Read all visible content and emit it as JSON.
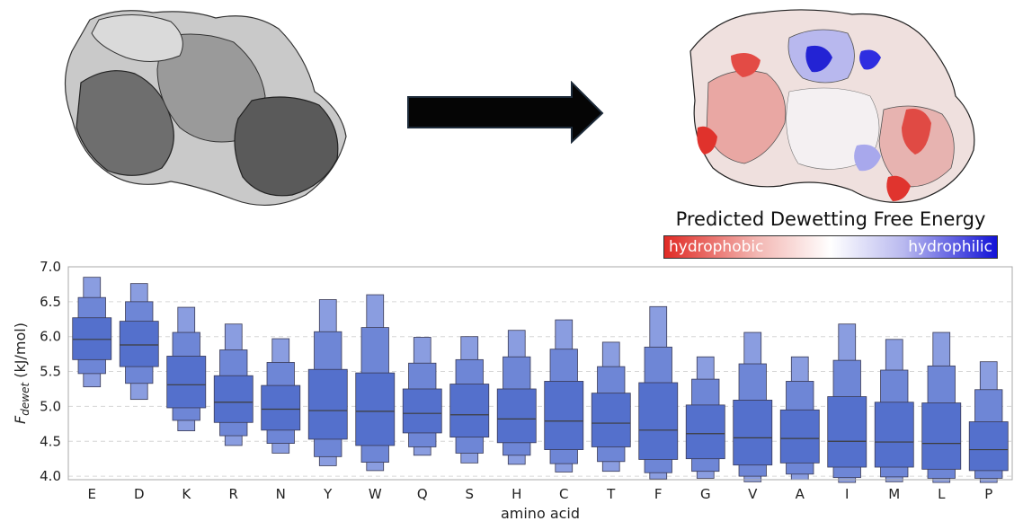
{
  "legend": {
    "title": "Predicted Dewetting Free Energy",
    "low_label": "hydrophobic",
    "high_label": "hydrophilic",
    "colors": [
      "#e02a24",
      "#ffffff",
      "#1212d8"
    ]
  },
  "images": {
    "left": "grey-protein-surface",
    "arrow": "right-arrow-icon",
    "right": "colored-protein-surface"
  },
  "chart_data": {
    "type": "boxen",
    "xlabel": "amino acid",
    "ylabel": "F_dewet (kJ/mol)",
    "ylim": [
      3.95,
      7.0
    ],
    "yticks": [
      4.0,
      4.5,
      5.0,
      5.5,
      6.0,
      6.5,
      7.0
    ],
    "grid": "horizontal dashed",
    "box_color": "#5470cc",
    "series": [
      {
        "label": "E",
        "median": 5.96,
        "levels": [
          [
            5.67,
            6.27
          ],
          [
            5.47,
            6.56
          ],
          [
            5.28,
            6.85
          ]
        ]
      },
      {
        "label": "D",
        "median": 5.88,
        "levels": [
          [
            5.57,
            6.22
          ],
          [
            5.33,
            6.5
          ],
          [
            5.1,
            6.76
          ]
        ]
      },
      {
        "label": "K",
        "median": 5.31,
        "levels": [
          [
            4.98,
            5.72
          ],
          [
            4.8,
            6.06
          ],
          [
            4.65,
            6.42
          ]
        ]
      },
      {
        "label": "R",
        "median": 5.06,
        "levels": [
          [
            4.77,
            5.44
          ],
          [
            4.58,
            5.81
          ],
          [
            4.44,
            6.18
          ]
        ]
      },
      {
        "label": "N",
        "median": 4.96,
        "levels": [
          [
            4.66,
            5.3
          ],
          [
            4.47,
            5.63
          ],
          [
            4.33,
            5.97
          ]
        ]
      },
      {
        "label": "Y",
        "median": 4.94,
        "levels": [
          [
            4.53,
            5.53
          ],
          [
            4.28,
            6.07
          ],
          [
            4.15,
            6.53
          ]
        ]
      },
      {
        "label": "W",
        "median": 4.93,
        "levels": [
          [
            4.44,
            5.48
          ],
          [
            4.2,
            6.13
          ],
          [
            4.08,
            6.6
          ]
        ]
      },
      {
        "label": "Q",
        "median": 4.9,
        "levels": [
          [
            4.62,
            5.25
          ],
          [
            4.42,
            5.62
          ],
          [
            4.3,
            5.99
          ]
        ]
      },
      {
        "label": "S",
        "median": 4.88,
        "levels": [
          [
            4.56,
            5.32
          ],
          [
            4.33,
            5.67
          ],
          [
            4.19,
            6.0
          ]
        ]
      },
      {
        "label": "H",
        "median": 4.82,
        "levels": [
          [
            4.48,
            5.25
          ],
          [
            4.3,
            5.71
          ],
          [
            4.17,
            6.09
          ]
        ]
      },
      {
        "label": "C",
        "median": 4.79,
        "levels": [
          [
            4.38,
            5.36
          ],
          [
            4.18,
            5.82
          ],
          [
            4.06,
            6.24
          ]
        ]
      },
      {
        "label": "T",
        "median": 4.76,
        "levels": [
          [
            4.42,
            5.19
          ],
          [
            4.21,
            5.57
          ],
          [
            4.07,
            5.92
          ]
        ]
      },
      {
        "label": "F",
        "median": 4.66,
        "levels": [
          [
            4.24,
            5.34
          ],
          [
            4.05,
            5.85
          ],
          [
            3.96,
            6.43
          ]
        ]
      },
      {
        "label": "G",
        "median": 4.61,
        "levels": [
          [
            4.25,
            5.02
          ],
          [
            4.07,
            5.39
          ],
          [
            3.97,
            5.71
          ]
        ]
      },
      {
        "label": "V",
        "median": 4.55,
        "levels": [
          [
            4.16,
            5.09
          ],
          [
            4.0,
            5.61
          ],
          [
            3.92,
            6.06
          ]
        ]
      },
      {
        "label": "A",
        "median": 4.54,
        "levels": [
          [
            4.19,
            4.95
          ],
          [
            4.03,
            5.36
          ],
          [
            3.95,
            5.71
          ]
        ]
      },
      {
        "label": "I",
        "median": 4.5,
        "levels": [
          [
            4.13,
            5.14
          ],
          [
            3.98,
            5.66
          ],
          [
            3.91,
            6.18
          ]
        ]
      },
      {
        "label": "M",
        "median": 4.49,
        "levels": [
          [
            4.13,
            5.06
          ],
          [
            3.99,
            5.52
          ],
          [
            3.92,
            5.96
          ]
        ]
      },
      {
        "label": "L",
        "median": 4.47,
        "levels": [
          [
            4.1,
            5.05
          ],
          [
            3.97,
            5.58
          ],
          [
            3.91,
            6.06
          ]
        ]
      },
      {
        "label": "P",
        "median": 4.38,
        "levels": [
          [
            4.08,
            4.78
          ],
          [
            3.97,
            5.24
          ],
          [
            3.91,
            5.64
          ]
        ]
      }
    ]
  }
}
